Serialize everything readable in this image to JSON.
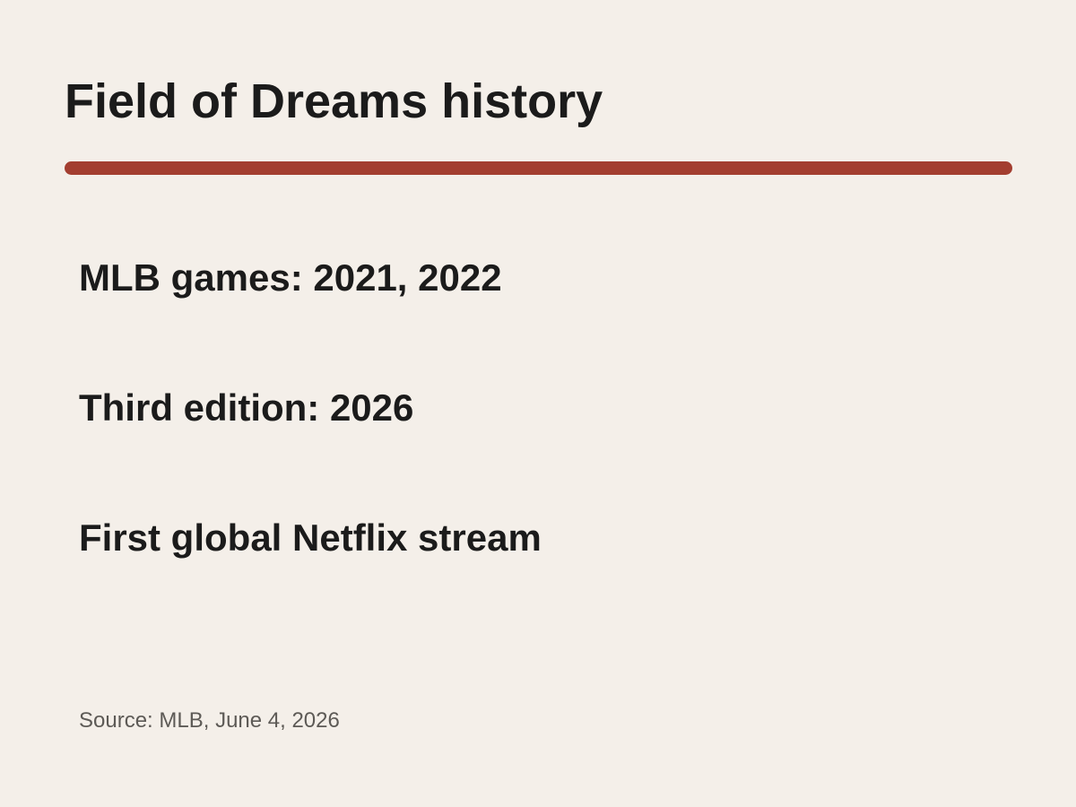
{
  "slide": {
    "title": "Field of Dreams history",
    "facts": [
      "MLB games: 2021, 2022",
      "Third edition: 2026",
      "First global Netflix stream"
    ],
    "source": "Source: MLB, June 4, 2026"
  },
  "colors": {
    "background": "#f4efe9",
    "accent_rule": "#a33e30",
    "text": "#1b1b1b",
    "source_text": "#5d5a56"
  }
}
